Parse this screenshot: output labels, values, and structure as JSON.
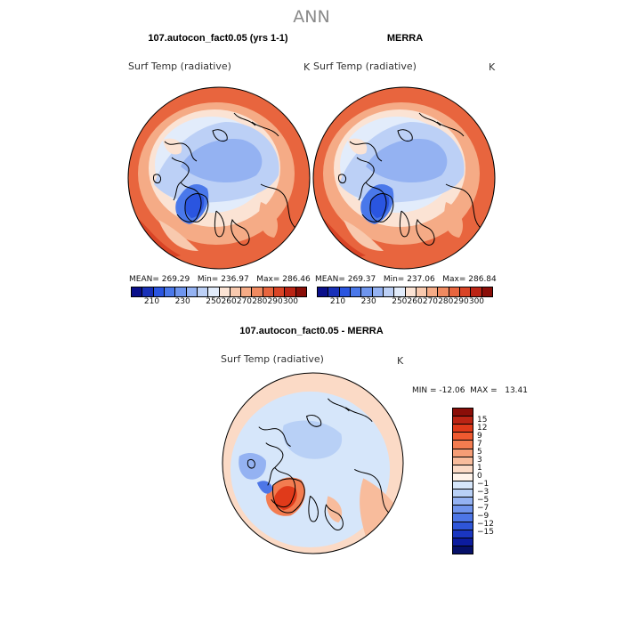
{
  "figure": {
    "title": "ANN"
  },
  "panels": [
    {
      "title": "107.autocon_fact0.05 (yrs 1-1)",
      "variable": "Surf Temp (radiative)",
      "units": "K",
      "stats": "MEAN= 269.29   Min= 236.97   Max= 286.46"
    },
    {
      "title": "MERRA",
      "variable": "Surf Temp (radiative)",
      "units": "K",
      "stats": "MEAN= 269.37   Min= 237.06   Max= 286.84"
    },
    {
      "title": "107.autocon_fact0.05 - MERRA",
      "variable": "Surf Temp (radiative)",
      "units": "K",
      "stats": "MIN = -12.06  MAX =   13.41"
    }
  ],
  "colorbar_abs": {
    "colors": [
      "#0a0f8a",
      "#1830b8",
      "#2a55e0",
      "#4a78ea",
      "#6e95ee",
      "#94b2f2",
      "#bcd0f6",
      "#e2ecfb",
      "#fbe3d4",
      "#f8c9ae",
      "#f5ab86",
      "#f08a60",
      "#e8653e",
      "#d94426",
      "#bb2414",
      "#8a0e08"
    ],
    "tick_labels": [
      "210",
      "230",
      "250",
      "260",
      "270",
      "280",
      "290",
      "300"
    ]
  },
  "colorbar_diff": {
    "colors": [
      "#8a0e08",
      "#bb2414",
      "#e03a1a",
      "#ef5a30",
      "#f37c50",
      "#f59d76",
      "#f8bc9c",
      "#fbdac6",
      "#fff3ea",
      "#d6e6fa",
      "#b8d0f6",
      "#94b2f2",
      "#7094ec",
      "#4d76e6",
      "#2f56d8",
      "#1a36c0",
      "#0c1c9e",
      "#061068"
    ],
    "tick_labels": [
      "15",
      "12",
      "9",
      "7",
      "5",
      "3",
      "1",
      "0",
      "−1",
      "−3",
      "−5",
      "−7",
      "−9",
      "−12",
      "−15"
    ]
  }
}
